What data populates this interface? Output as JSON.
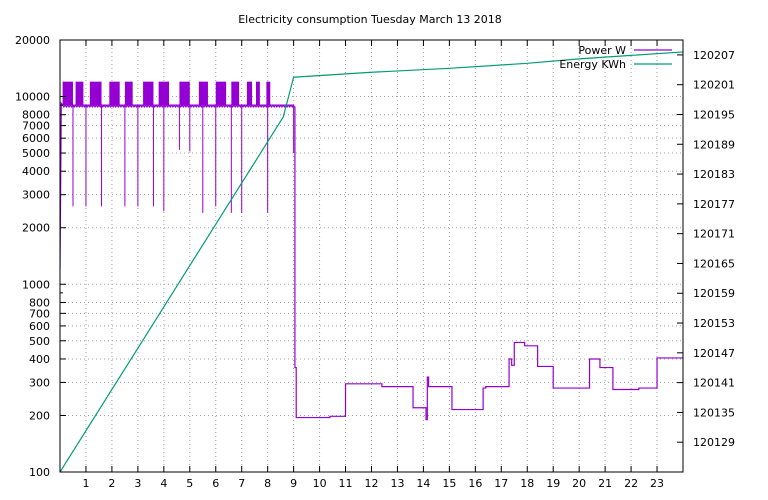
{
  "chart_data": {
    "type": "line",
    "title": "Electricity consumption Tuesday March 13 2018",
    "x_ticks": [
      1,
      2,
      3,
      4,
      5,
      6,
      7,
      8,
      9,
      10,
      11,
      12,
      13,
      14,
      15,
      16,
      17,
      18,
      19,
      20,
      21,
      22,
      23
    ],
    "xlim": [
      0,
      24
    ],
    "y_left": {
      "scale": "log",
      "ylim": [
        100,
        20000
      ],
      "ticks": [
        100,
        200,
        300,
        400,
        500,
        600,
        700,
        800,
        1000,
        2000,
        3000,
        4000,
        5000,
        6000,
        7000,
        8000,
        10000,
        20000
      ],
      "tick_labels": [
        "100",
        "200",
        "300",
        "400",
        "500",
        "600",
        "700",
        "800",
        "1000",
        "2000",
        "3000",
        "4000",
        "5000",
        "6000",
        "7000",
        "8000",
        "10000",
        "20000"
      ]
    },
    "y_right": {
      "scale": "linear",
      "ylim": [
        120123,
        120210
      ],
      "ticks": [
        120129,
        120135,
        120141,
        120147,
        120153,
        120159,
        120165,
        120171,
        120177,
        120183,
        120189,
        120195,
        120201,
        120207
      ],
      "tick_labels": [
        "120129",
        "120135",
        "120141",
        "120147",
        "120153",
        "120159",
        "120165",
        "120171",
        "120177",
        "120183",
        "120189",
        "120195",
        "120201",
        "120207"
      ]
    },
    "grid": true,
    "legend_position": "top-right",
    "series": [
      {
        "name": "Power W",
        "axis": "left",
        "color": "#9400d3",
        "step": true,
        "x": [
          0,
          0.05,
          0.1,
          9.0,
          9.05,
          9.1,
          10.4,
          11.0,
          12.4,
          13.6,
          14.1,
          14.15,
          14.2,
          14.35,
          14.4,
          15.1,
          16.3,
          16.4,
          17.3,
          17.4,
          17.5,
          17.6,
          17.9,
          18.4,
          19.0,
          20.4,
          20.8,
          21.3,
          22.3,
          23.0,
          23.5,
          24.0
        ],
        "values": [
          1200,
          9200,
          9000,
          8800,
          360,
          195,
          198,
          295,
          285,
          220,
          190,
          320,
          285,
          285,
          285,
          215,
          280,
          285,
          400,
          370,
          490,
          490,
          470,
          365,
          280,
          400,
          360,
          275,
          280,
          405,
          405,
          420
        ],
        "busy_period": {
          "x_from": 0.1,
          "x_to": 9.0,
          "low": 9000,
          "high": 12000,
          "pulse_bands": [
            [
              0.1,
              0.5
            ],
            [
              0.6,
              0.9
            ],
            [
              1.15,
              1.6
            ],
            [
              1.9,
              2.3
            ],
            [
              2.5,
              2.8
            ],
            [
              3.2,
              3.6
            ],
            [
              3.8,
              4.2
            ],
            [
              4.6,
              5.0
            ],
            [
              5.35,
              5.7
            ],
            [
              6.0,
              6.4
            ],
            [
              6.6,
              6.9
            ],
            [
              7.2,
              7.4
            ],
            [
              7.55,
              7.7
            ],
            [
              7.95,
              8.1
            ]
          ],
          "dips": [
            [
              0.5,
              2600
            ],
            [
              1.0,
              2600
            ],
            [
              1.6,
              2600
            ],
            [
              2.5,
              2600
            ],
            [
              3.0,
              2600
            ],
            [
              3.6,
              2600
            ],
            [
              4.0,
              2450
            ],
            [
              4.6,
              5200
            ],
            [
              5.0,
              5100
            ],
            [
              5.5,
              2400
            ],
            [
              6.0,
              2600
            ],
            [
              6.6,
              2400
            ],
            [
              7.0,
              2400
            ],
            [
              8.0,
              2400
            ],
            [
              9.0,
              5000
            ]
          ]
        }
      },
      {
        "name": "Energy KWh",
        "axis": "right",
        "color": "#009e73",
        "x": [
          0,
          8.6,
          9.0,
          12,
          15,
          18,
          20,
          22,
          24
        ],
        "values": [
          120123,
          120194.5,
          120202.5,
          120203.5,
          120204.3,
          120205.3,
          120206.2,
          120206.9,
          120207.6
        ]
      }
    ]
  }
}
